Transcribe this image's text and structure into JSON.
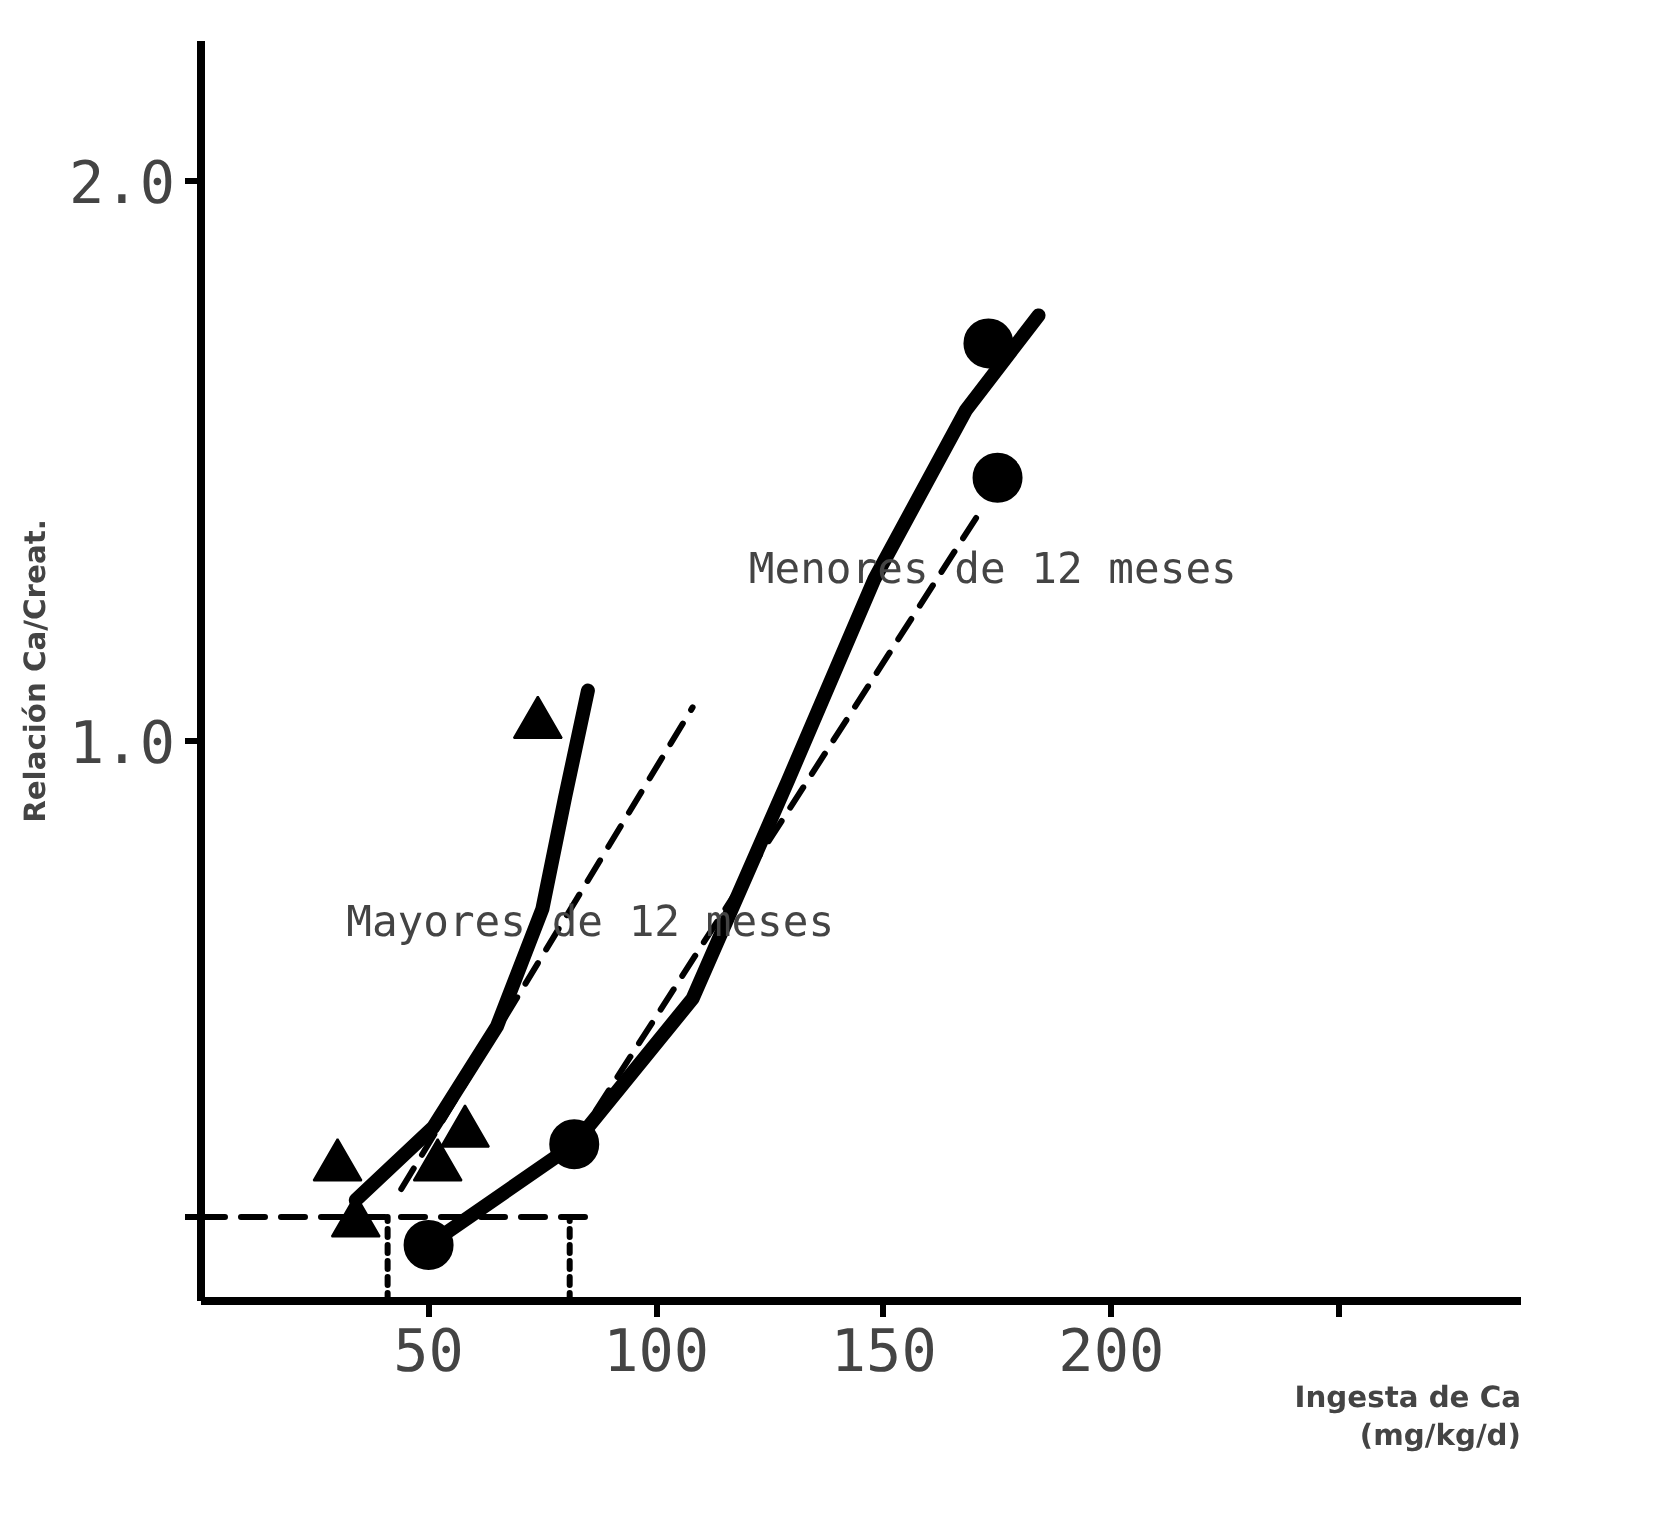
{
  "chart_data": {
    "type": "scatter",
    "xlabel": "Ingesta de Ca\n(mg/kg/d)",
    "ylabel": "Relación Ca/Creat.",
    "xlim": [
      0,
      290
    ],
    "ylim": [
      0,
      2.25
    ],
    "xticks": [
      50,
      100,
      150,
      200,
      {
        "value": 250,
        "label": null
      }
    ],
    "yticks": [
      {
        "value": 0.15,
        "label": null
      },
      {
        "value": 1.0,
        "label": "1.0"
      },
      {
        "value": 2.0,
        "label": "2.0"
      }
    ],
    "grid": false,
    "series": [
      {
        "marker": "circle",
        "color": "#000000",
        "x": [
          50,
          82,
          173,
          175
        ],
        "values": [
          0.1,
          0.28,
          1.71,
          1.47
        ]
      },
      {
        "marker": "triangle",
        "color": "#000000",
        "x": [
          30,
          34,
          52,
          58,
          74
        ],
        "values": [
          0.24,
          0.14,
          0.24,
          0.3,
          1.03
        ]
      },
      {
        "type": "line",
        "line_style": "solid",
        "color": "#000000",
        "x": [
          50,
          82,
          108,
          129,
          148,
          168,
          184
        ],
        "values": [
          0.1,
          0.28,
          0.54,
          0.93,
          1.29,
          1.59,
          1.76
        ]
      },
      {
        "type": "line",
        "line_style": "solid",
        "color": "#000000",
        "x": [
          34,
          51,
          65,
          75,
          80,
          85
        ],
        "values": [
          0.18,
          0.31,
          0.49,
          0.7,
          0.9,
          1.09
        ]
      },
      {
        "type": "line",
        "line_style": "dashed",
        "color": "#000000",
        "x": [
          44,
          108
        ],
        "values": [
          0.2,
          1.06
        ]
      },
      {
        "type": "line",
        "line_style": "dashed",
        "color": "#000000",
        "x": [
          82,
          172
        ],
        "values": [
          0.28,
          1.42
        ]
      },
      {
        "type": "line",
        "line_style": "dashed",
        "color": "#000000",
        "x": [
          0,
          87
        ],
        "values": [
          0.15,
          0.15
        ]
      },
      {
        "type": "line",
        "line_style": "dotted",
        "color": "#000000",
        "x": [
          41,
          41
        ],
        "values": [
          0,
          0.15
        ]
      },
      {
        "type": "line",
        "line_style": "dotted",
        "color": "#000000",
        "x": [
          81,
          81
        ],
        "values": [
          0,
          0.15
        ]
      }
    ],
    "annotations": [
      "Menores de 12 meses",
      "Mayores de 12 meses"
    ]
  }
}
